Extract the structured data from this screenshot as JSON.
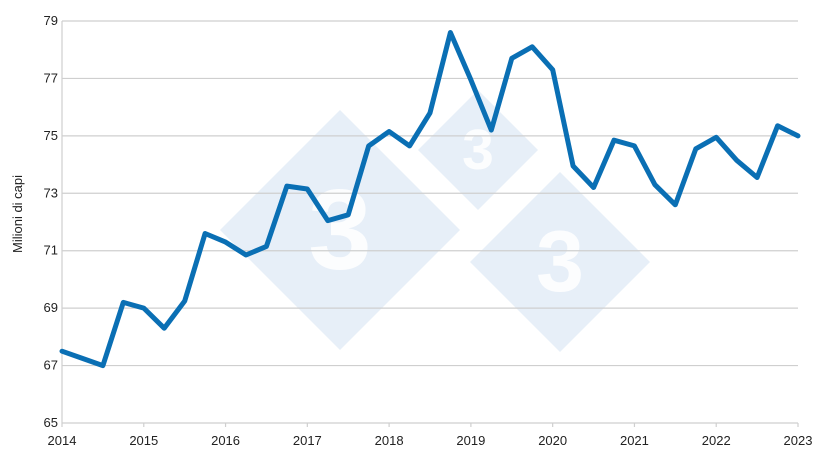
{
  "chart_data": {
    "type": "line",
    "title": "",
    "xlabel": "",
    "ylabel": "Milioni di capi",
    "xlim": [
      2014,
      2023
    ],
    "ylim": [
      65,
      79
    ],
    "yticks": [
      65,
      67,
      69,
      71,
      73,
      75,
      77,
      79
    ],
    "xticks": [
      "2014",
      "2015",
      "2016",
      "2017",
      "2018",
      "2019",
      "2020",
      "2021",
      "2022",
      "2023"
    ],
    "grid": true,
    "legend": "none",
    "series": [
      {
        "color": "#0a6fb4",
        "x": [
          2014.0,
          2014.25,
          2014.5,
          2014.75,
          2015.0,
          2015.25,
          2015.5,
          2015.75,
          2016.0,
          2016.25,
          2016.5,
          2016.75,
          2017.0,
          2017.25,
          2017.5,
          2017.75,
          2018.0,
          2018.25,
          2018.5,
          2018.75,
          2019.0,
          2019.25,
          2019.5,
          2019.75,
          2020.0,
          2020.25,
          2020.5,
          2020.75,
          2021.0,
          2021.25,
          2021.5,
          2021.75,
          2022.0,
          2022.25,
          2022.5,
          2022.75,
          2023.0
        ],
        "y": [
          67.5,
          67.25,
          67.0,
          69.2,
          69.0,
          68.3,
          69.25,
          71.6,
          71.3,
          70.85,
          71.15,
          73.25,
          73.15,
          72.05,
          72.25,
          74.65,
          75.15,
          74.65,
          75.8,
          78.6,
          76.95,
          75.2,
          77.7,
          78.1,
          77.3,
          73.95,
          73.2,
          74.85,
          74.65,
          73.3,
          72.6,
          74.55,
          74.95,
          74.15,
          73.55,
          75.35,
          75.0
        ]
      }
    ]
  },
  "watermark": {
    "digit": "3",
    "color": "#dfe9f5"
  }
}
